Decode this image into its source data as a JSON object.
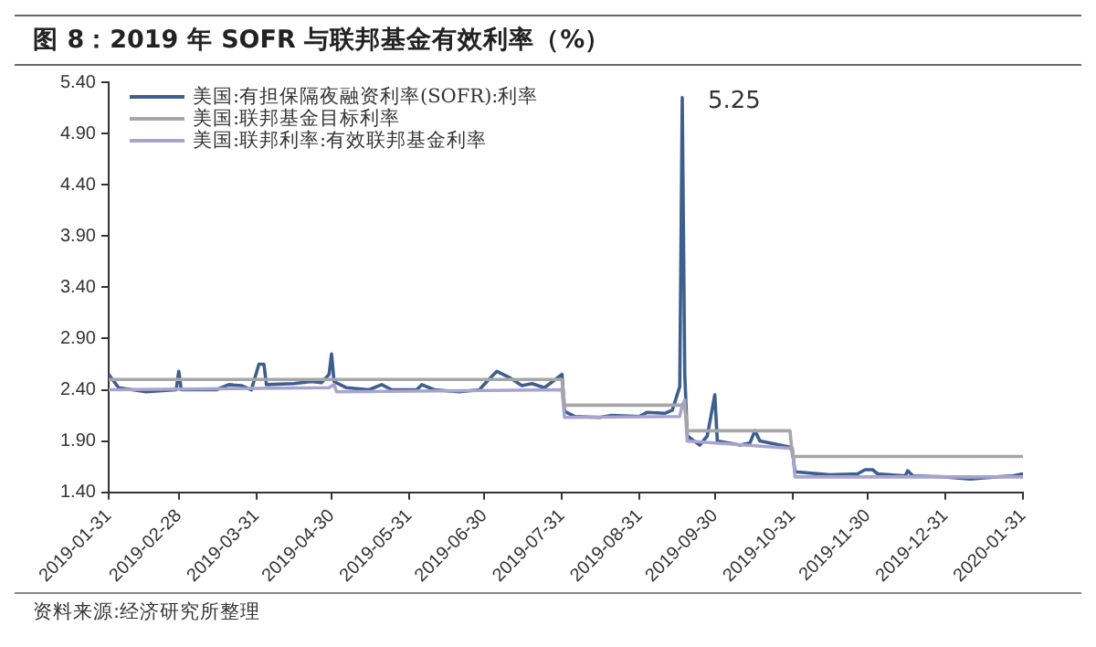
{
  "chart_data": {
    "type": "line",
    "title": "图 8：2019 年 SOFR 与联邦基金有效利率（%）",
    "annotations": [
      {
        "text": "5.25",
        "x": "2019-09-17",
        "y": 5.25
      },
      "资料来源:经济研究所整理"
    ],
    "xlim": [
      "2019-01-31",
      "2020-01-31"
    ],
    "xticks": [
      "2019-01-31",
      "2019-02-28",
      "2019-03-31",
      "2019-04-30",
      "2019-05-31",
      "2019-06-30",
      "2019-07-31",
      "2019-08-31",
      "2019-09-30",
      "2019-10-31",
      "2019-11-30",
      "2019-12-31",
      "2020-01-31"
    ],
    "ylim": [
      1.4,
      5.4
    ],
    "yticks": [
      {
        "value": 1.4,
        "label": "1.40"
      },
      {
        "value": 1.9,
        "label": "1.90"
      },
      {
        "value": 2.4,
        "label": "2.40"
      },
      {
        "value": 2.9,
        "label": "2.90"
      },
      {
        "value": 3.4,
        "label": "3.40"
      },
      {
        "value": 3.9,
        "label": "3.90"
      },
      {
        "value": 4.4,
        "label": "4.40"
      },
      {
        "value": 4.9,
        "label": "4.90"
      },
      {
        "value": 5.4,
        "label": "5.40"
      }
    ],
    "grid": false,
    "legend": "top left",
    "marker": "none",
    "line_style": "solid",
    "series": [
      {
        "name": "美国:联邦基金目标利率",
        "color": "#a6a6a6",
        "x": [
          "2019-01-31",
          "2019-07-31",
          "2019-08-01",
          "2019-09-18",
          "2019-09-19",
          "2019-10-30",
          "2019-10-31",
          "2020-01-31"
        ],
        "values": [
          2.5,
          2.5,
          2.25,
          2.25,
          2.0,
          2.0,
          1.75,
          1.75
        ]
      },
      {
        "name": "美国:联邦利率:有效联邦基金利率",
        "color": "#a9a3d0",
        "x": [
          "2019-01-31",
          "2019-04-29",
          "2019-05-01",
          "2019-05-02",
          "2019-07-31",
          "2019-08-01",
          "2019-09-16",
          "2019-09-17",
          "2019-09-18",
          "2019-09-19",
          "2019-10-30",
          "2019-10-31",
          "2019-11-01",
          "2020-01-31"
        ],
        "values": [
          2.4,
          2.42,
          2.45,
          2.38,
          2.4,
          2.13,
          2.14,
          2.25,
          2.3,
          1.9,
          1.83,
          1.83,
          1.55,
          1.55
        ]
      },
      {
        "name": "美国:有担保隔夜融资利率(SOFR):利率",
        "color": "#3d5f8f",
        "x": [
          "2019-01-31",
          "2019-02-04",
          "2019-02-15",
          "2019-02-27",
          "2019-02-28",
          "2019-03-01",
          "2019-03-15",
          "2019-03-20",
          "2019-03-25",
          "2019-03-29",
          "2019-04-01",
          "2019-04-03",
          "2019-04-04",
          "2019-04-15",
          "2019-04-22",
          "2019-04-26",
          "2019-04-29",
          "2019-04-30",
          "2019-05-01",
          "2019-05-06",
          "2019-05-15",
          "2019-05-20",
          "2019-05-24",
          "2019-06-03",
          "2019-06-05",
          "2019-06-10",
          "2019-06-20",
          "2019-06-28",
          "2019-07-01",
          "2019-07-05",
          "2019-07-10",
          "2019-07-15",
          "2019-07-19",
          "2019-07-24",
          "2019-07-31",
          "2019-08-01",
          "2019-08-05",
          "2019-08-15",
          "2019-08-20",
          "2019-08-31",
          "2019-09-03",
          "2019-09-10",
          "2019-09-13",
          "2019-09-16",
          "2019-09-17",
          "2019-09-18",
          "2019-09-19",
          "2019-09-24",
          "2019-09-27",
          "2019-09-30",
          "2019-10-01",
          "2019-10-10",
          "2019-10-14",
          "2019-10-16",
          "2019-10-18",
          "2019-10-30",
          "2019-10-31",
          "2019-11-01",
          "2019-11-15",
          "2019-11-26",
          "2019-11-29",
          "2019-12-02",
          "2019-12-04",
          "2019-12-15",
          "2019-12-16",
          "2019-12-18",
          "2019-12-31",
          "2020-01-10",
          "2020-01-20",
          "2020-01-27",
          "2020-01-31"
        ],
        "values": [
          2.55,
          2.42,
          2.38,
          2.4,
          2.58,
          2.4,
          2.4,
          2.45,
          2.44,
          2.4,
          2.65,
          2.65,
          2.45,
          2.46,
          2.48,
          2.47,
          2.55,
          2.75,
          2.48,
          2.42,
          2.4,
          2.45,
          2.4,
          2.4,
          2.45,
          2.4,
          2.38,
          2.4,
          2.48,
          2.58,
          2.52,
          2.44,
          2.46,
          2.42,
          2.55,
          2.19,
          2.14,
          2.13,
          2.15,
          2.14,
          2.18,
          2.17,
          2.2,
          2.43,
          5.25,
          2.55,
          1.95,
          1.86,
          1.95,
          2.35,
          1.9,
          1.86,
          1.88,
          2.0,
          1.9,
          1.84,
          1.8,
          1.6,
          1.57,
          1.58,
          1.62,
          1.62,
          1.58,
          1.56,
          1.61,
          1.56,
          1.55,
          1.53,
          1.55,
          1.56,
          1.58
        ]
      }
    ]
  }
}
